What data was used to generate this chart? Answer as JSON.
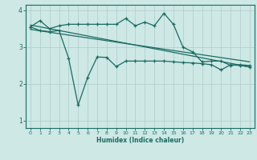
{
  "title": "",
  "xlabel": "Humidex (Indice chaleur)",
  "background_color": "#cde8e5",
  "grid_color": "#b0ccca",
  "line_color": "#1a6b62",
  "xlim": [
    -0.5,
    23.5
  ],
  "ylim": [
    0.8,
    4.15
  ],
  "yticks": [
    1,
    2,
    3,
    4
  ],
  "xticks": [
    0,
    1,
    2,
    3,
    4,
    5,
    6,
    7,
    8,
    9,
    10,
    11,
    12,
    13,
    14,
    15,
    16,
    17,
    18,
    19,
    20,
    21,
    22,
    23
  ],
  "line1_x": [
    0,
    1,
    2,
    3,
    4,
    5,
    6,
    7,
    8,
    9,
    10,
    11,
    12,
    13,
    14,
    15,
    16,
    17,
    18,
    19,
    20,
    21,
    22,
    23
  ],
  "line1_y": [
    3.55,
    3.72,
    3.5,
    3.58,
    3.62,
    3.62,
    3.62,
    3.62,
    3.62,
    3.62,
    3.78,
    3.58,
    3.68,
    3.58,
    3.92,
    3.62,
    3.0,
    2.87,
    2.6,
    2.62,
    2.62,
    2.5,
    2.52,
    2.5
  ],
  "line2_x": [
    0,
    1,
    2,
    3,
    4,
    5,
    6,
    7,
    8,
    9,
    10,
    11,
    12,
    13,
    14,
    15,
    16,
    17,
    18,
    19,
    20,
    21,
    22,
    23
  ],
  "line2_y": [
    3.55,
    3.45,
    3.42,
    3.45,
    2.7,
    1.42,
    2.18,
    2.73,
    2.72,
    2.47,
    2.62,
    2.62,
    2.62,
    2.62,
    2.62,
    2.6,
    2.58,
    2.57,
    2.55,
    2.52,
    2.38,
    2.52,
    2.5,
    2.46
  ],
  "line3_x": [
    0,
    23
  ],
  "line3_y": [
    3.6,
    2.46
  ],
  "line4_x": [
    0,
    23
  ],
  "line4_y": [
    3.48,
    2.6
  ]
}
